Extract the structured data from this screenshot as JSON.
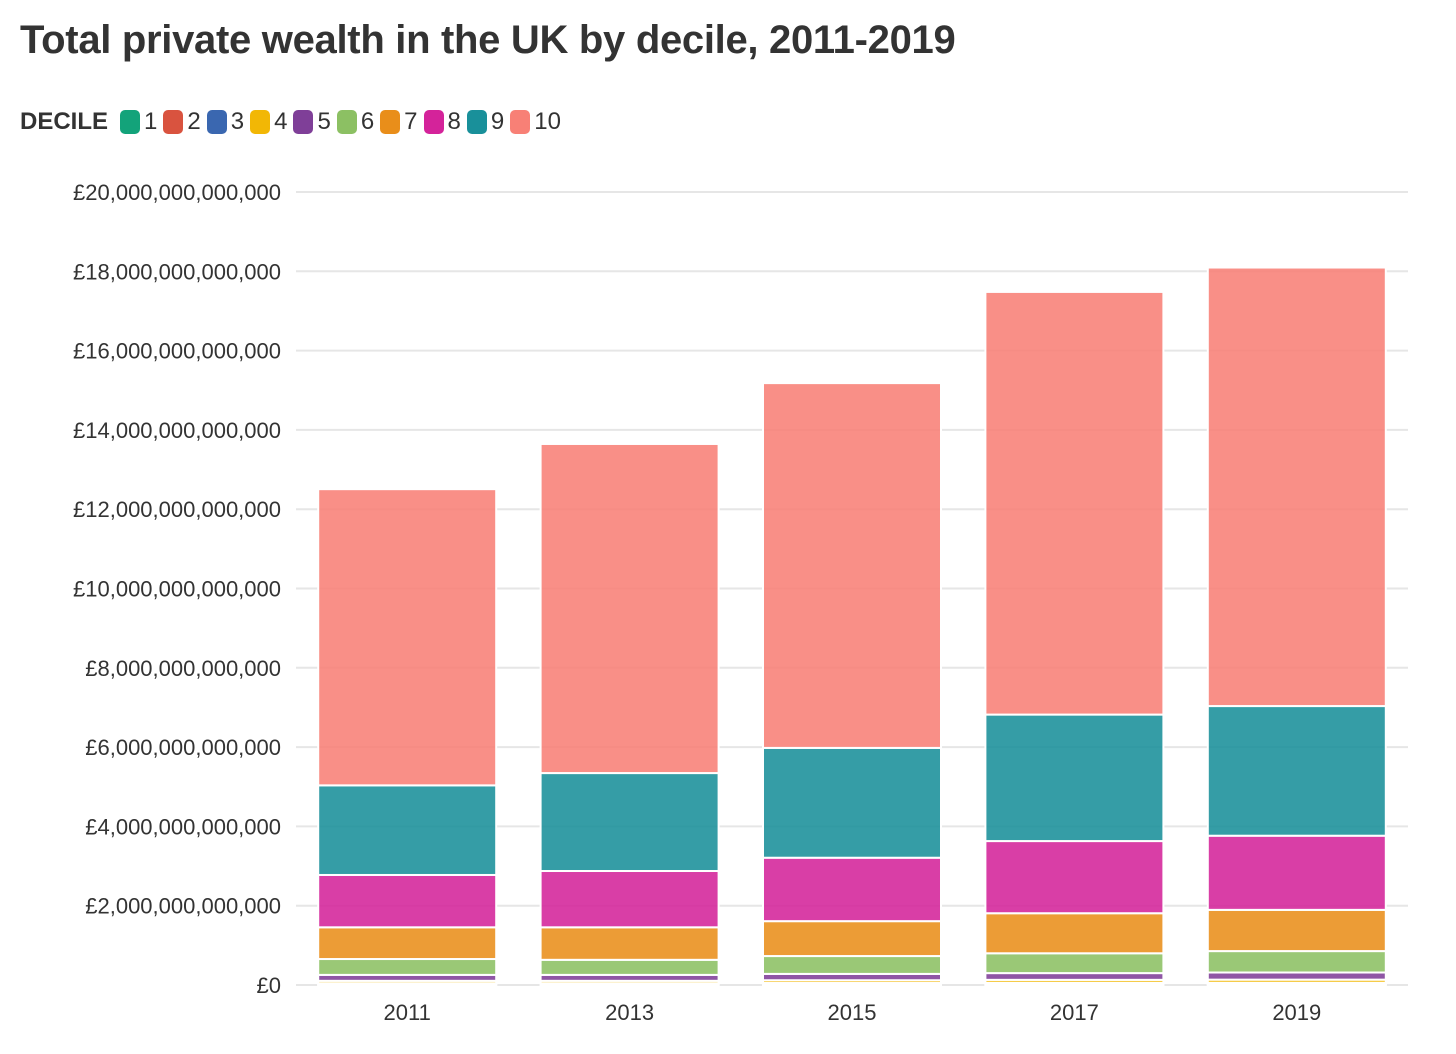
{
  "title": "Total private wealth in the UK by decile, 2011-2019",
  "legend": {
    "label": "DECILE",
    "items": [
      {
        "name": "1",
        "color": "#13a37a"
      },
      {
        "name": "2",
        "color": "#d9533f"
      },
      {
        "name": "3",
        "color": "#3a67b0"
      },
      {
        "name": "4",
        "color": "#f2b705"
      },
      {
        "name": "5",
        "color": "#7f3f98"
      },
      {
        "name": "6",
        "color": "#8cc063"
      },
      {
        "name": "7",
        "color": "#e98e1a"
      },
      {
        "name": "8",
        "color": "#d4239a"
      },
      {
        "name": "9",
        "color": "#19909a"
      },
      {
        "name": "10",
        "color": "#f88076"
      }
    ]
  },
  "chart_data": {
    "type": "bar",
    "stacked": true,
    "title": "Total private wealth in the UK by decile, 2011-2019",
    "xlabel": "",
    "ylabel": "",
    "categories": [
      "2011",
      "2013",
      "2015",
      "2017",
      "2019"
    ],
    "ylim": [
      0,
      20000000000000
    ],
    "yticks": [
      0,
      2000000000000,
      4000000000000,
      6000000000000,
      8000000000000,
      10000000000000,
      12000000000000,
      14000000000000,
      16000000000000,
      18000000000000,
      20000000000000
    ],
    "ytick_labels": [
      "£0",
      "£2,000,000,000,000",
      "£4,000,000,000,000",
      "£6,000,000,000,000",
      "£8,000,000,000,000",
      "£10,000,000,000,000",
      "£12,000,000,000,000",
      "£14,000,000,000,000",
      "£16,000,000,000,000",
      "£18,000,000,000,000",
      "£20,000,000,000,000"
    ],
    "grid": true,
    "legend_position": "top-left",
    "series": [
      {
        "name": "1",
        "color": "#13a37a",
        "values": [
          5000000000,
          5000000000,
          5000000000,
          5000000000,
          5000000000
        ]
      },
      {
        "name": "2",
        "color": "#d9533f",
        "values": [
          10000000000,
          10000000000,
          10000000000,
          10000000000,
          10000000000
        ]
      },
      {
        "name": "3",
        "color": "#3a67b0",
        "values": [
          30000000000,
          30000000000,
          35000000000,
          40000000000,
          40000000000
        ]
      },
      {
        "name": "4",
        "color": "#f2b705",
        "values": [
          60000000000,
          60000000000,
          70000000000,
          75000000000,
          80000000000
        ]
      },
      {
        "name": "5",
        "color": "#7f3f98",
        "values": [
          150000000000,
          150000000000,
          160000000000,
          170000000000,
          180000000000
        ]
      },
      {
        "name": "6",
        "color": "#8cc063",
        "values": [
          400000000000,
          380000000000,
          450000000000,
          500000000000,
          540000000000
        ]
      },
      {
        "name": "7",
        "color": "#e98e1a",
        "values": [
          800000000000,
          820000000000,
          880000000000,
          1010000000000,
          1040000000000
        ]
      },
      {
        "name": "8",
        "color": "#d4239a",
        "values": [
          1320000000000,
          1420000000000,
          1600000000000,
          1820000000000,
          1870000000000
        ]
      },
      {
        "name": "9",
        "color": "#19909a",
        "values": [
          2260000000000,
          2470000000000,
          2770000000000,
          3190000000000,
          3270000000000
        ]
      },
      {
        "name": "10",
        "color": "#f88076",
        "values": [
          7470000000000,
          8300000000000,
          9200000000000,
          10660000000000,
          11060000000000
        ]
      }
    ]
  }
}
